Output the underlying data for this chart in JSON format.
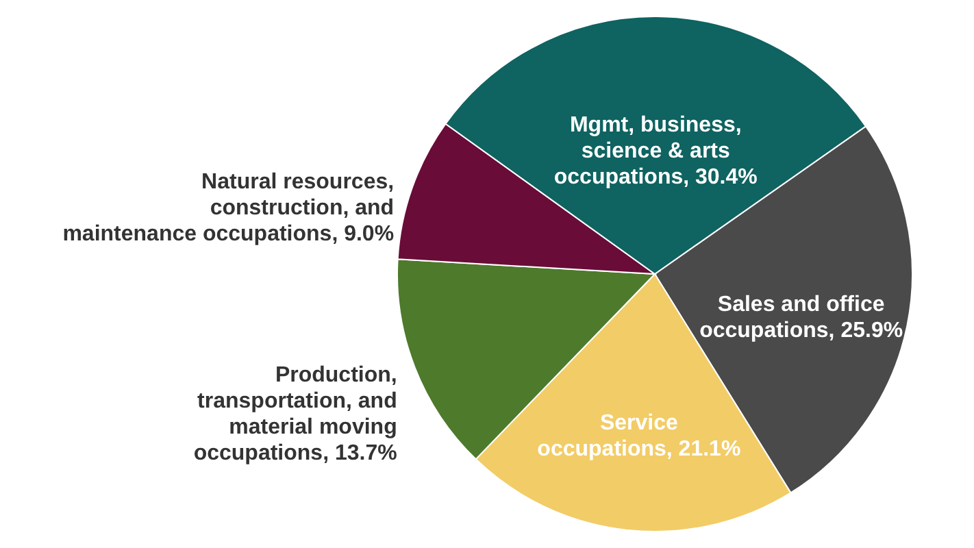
{
  "chart_data": {
    "type": "pie",
    "categories": [
      "Sales and office occupations",
      "Service occupations",
      "Production, transportation, and material moving occupations",
      "Natural resources, construction, and maintenance occupations",
      "Mgmt, business, science & arts occupations"
    ],
    "values": [
      25.9,
      21.1,
      13.7,
      9.0,
      30.4
    ],
    "value_labels": [
      "25.9%",
      "21.1%",
      "13.7%",
      "9.0%",
      "30.4%"
    ],
    "colors": [
      "#4a4a4a",
      "#f2cc66",
      "#4e7a2c",
      "#6a0c38",
      "#0f6361"
    ]
  }
}
